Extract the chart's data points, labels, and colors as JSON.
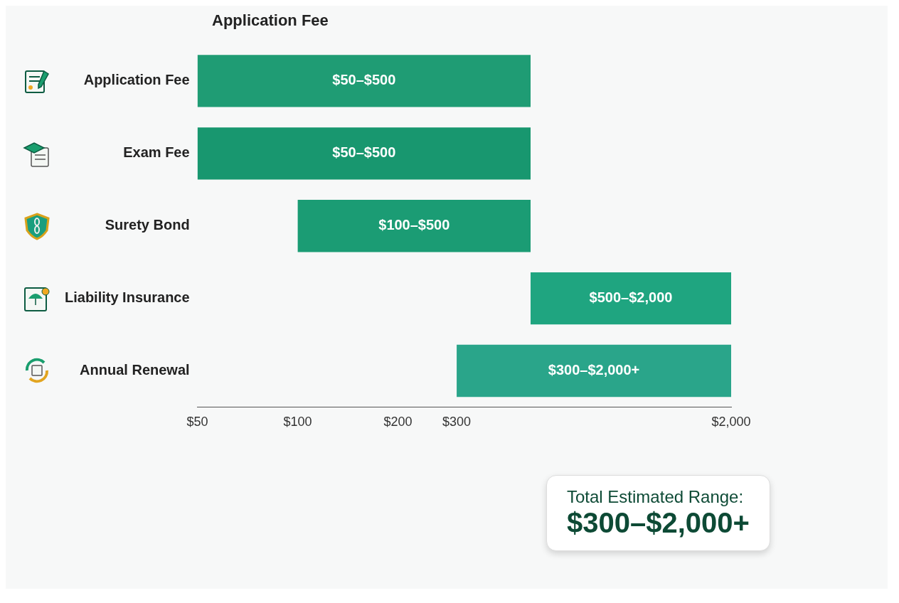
{
  "chart_data": {
    "type": "bar",
    "orientation": "horizontal",
    "log": "x",
    "categories": [
      "Application Fee",
      "Exam Fee",
      "Surety Bond",
      "Liability Insurance",
      "Annual Renewal"
    ],
    "base": [
      50,
      50,
      100,
      500,
      300
    ],
    "values": [
      450,
      450,
      400,
      1500,
      1700
    ],
    "colors": [
      "#1f9c74",
      "#18976f",
      "#1b9c74",
      "#1fa580",
      "#2aa58a"
    ],
    "value_labels": [
      "$50–$500",
      "$50–$500",
      "$100–$500",
      "$500–$2,000",
      "$300–$2,000+"
    ],
    "xlim": [
      50,
      2000
    ],
    "xticks": [
      {
        "value": 50,
        "label": "$50"
      },
      {
        "value": 100,
        "label": "$100"
      },
      {
        "value": 200,
        "label": "$200"
      },
      {
        "value": 300,
        "label": "$300"
      },
      {
        "value": 2000,
        "label": "$2,000"
      }
    ],
    "grid": false,
    "legend": false,
    "annotations": [
      "Application Fee",
      "Total Estimated Range:",
      "$300–$2,000+"
    ]
  }
}
